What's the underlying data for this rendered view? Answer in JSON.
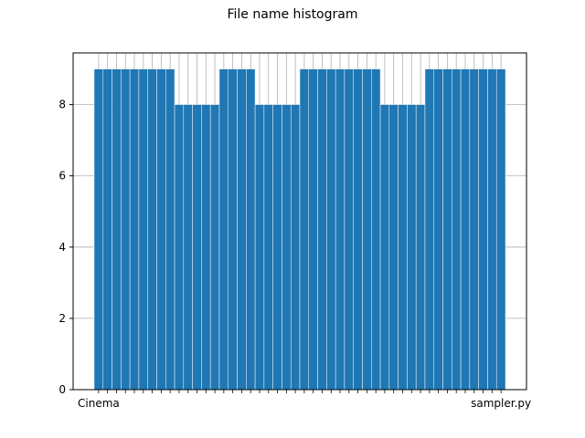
{
  "chart_data": {
    "type": "bar",
    "title": "File name histogram",
    "xlabel": "",
    "ylabel": "",
    "ylim": [
      0,
      9.45
    ],
    "yticks": [
      0,
      2,
      4,
      6,
      8
    ],
    "grid": true,
    "bar_color": "#1f77b4",
    "bar_edge_color": "#ffffff",
    "grid_color": "#b0b0b0",
    "bin_edges": [
      0,
      9,
      14,
      23,
      32,
      45,
      56,
      66,
      71,
      85,
      101
    ],
    "bin_values": [
      9,
      9,
      8,
      8,
      9,
      9,
      9,
      8,
      8,
      9
    ],
    "groups": [
      {
        "count": 9,
        "value": 9
      },
      {
        "count": 5,
        "value": 8
      },
      {
        "count": 4,
        "value": 9
      },
      {
        "count": 5,
        "value": 8
      },
      {
        "count": 9,
        "value": 9
      },
      {
        "count": 5,
        "value": 8
      },
      {
        "count": 9,
        "value": 9
      }
    ],
    "first_category": "Cinema",
    "last_category": "sampler.py"
  }
}
